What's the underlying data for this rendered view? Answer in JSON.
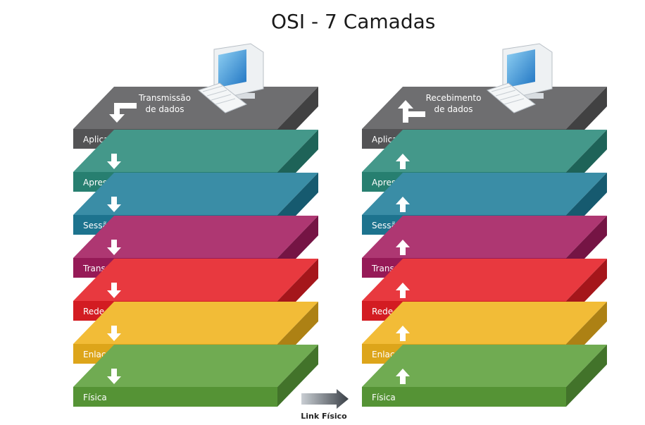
{
  "title": "OSI - 7 Camadas",
  "left_stack": {
    "note_line1": "Transmissão",
    "note_line2": "de dados",
    "direction": "down"
  },
  "right_stack": {
    "note_line1": "Recebimento",
    "note_line2": "de dados",
    "direction": "up"
  },
  "layers": [
    {
      "label": "Aplicação",
      "color": "#5a5a5c"
    },
    {
      "label": "Apresentação",
      "color": "#2a8a7a"
    },
    {
      "label": "Sessão",
      "color": "#1f7d9a"
    },
    {
      "label": "Transporte",
      "color": "#a31c5f"
    },
    {
      "label": "Rede",
      "color": "#e51e25"
    },
    {
      "label": "Enlace de dados",
      "color": "#f0b31c"
    },
    {
      "label": "Física",
      "color": "#5ca03a"
    }
  ],
  "link_label": "Link Físico",
  "icons": [
    "computer-monitor-icon",
    "keyboard-icon",
    "arrow-down-icon",
    "arrow-up-icon",
    "arrow-right-icon"
  ]
}
